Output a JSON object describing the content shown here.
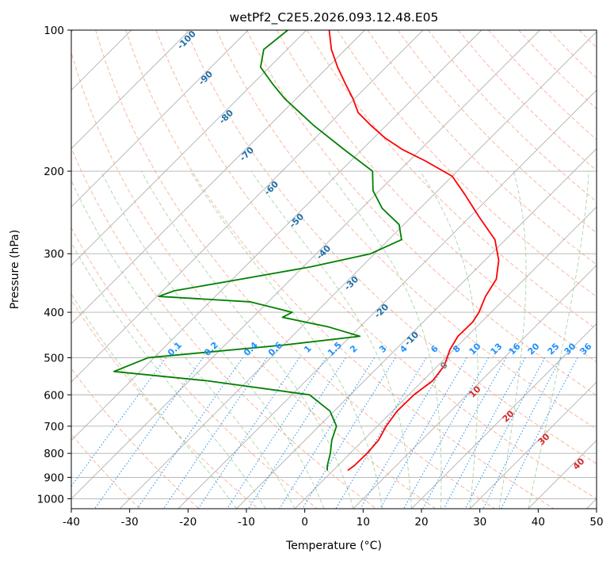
{
  "chart_data": {
    "type": "line",
    "title": "wetPf2_C2E5.2026.093.12.48.E05",
    "xlabel": "Temperature (°C)",
    "ylabel": "Pressure (hPa)",
    "xlim": [
      -40,
      50
    ],
    "ylim": [
      1050,
      100
    ],
    "y_scale": "log",
    "x_ticks": [
      -40,
      -30,
      -20,
      -10,
      0,
      10,
      20,
      30,
      40,
      50
    ],
    "y_ticks": [
      100,
      200,
      300,
      400,
      500,
      600,
      700,
      800,
      900,
      1000
    ],
    "grid": true,
    "series": [
      {
        "color": "#ff0000",
        "points": [
          [
            2.5,
            870
          ],
          [
            2.8,
            850
          ],
          [
            2.9,
            800
          ],
          [
            2.6,
            750
          ],
          [
            1.5,
            700
          ],
          [
            0.8,
            650
          ],
          [
            0.9,
            600
          ],
          [
            1.7,
            560
          ],
          [
            1.1,
            520
          ],
          [
            -0.7,
            480
          ],
          [
            -1.6,
            450
          ],
          [
            -1.5,
            420
          ],
          [
            -2.1,
            400
          ],
          [
            -3.7,
            370
          ],
          [
            -4.8,
            340
          ],
          [
            -7.6,
            310
          ],
          [
            -11.8,
            280
          ],
          [
            -18.5,
            250
          ],
          [
            -24.5,
            225
          ],
          [
            -30.0,
            205
          ],
          [
            -37.3,
            190
          ],
          [
            -43.0,
            180
          ],
          [
            -48.0,
            170
          ],
          [
            -52.5,
            160
          ],
          [
            -57.0,
            150
          ],
          [
            -60.3,
            140
          ],
          [
            -64.2,
            130
          ],
          [
            -68.3,
            120
          ],
          [
            -72.4,
            110
          ],
          [
            -76.1,
            100
          ]
        ]
      },
      {
        "color": "#008000",
        "points": [
          [
            -1.0,
            870
          ],
          [
            -1.8,
            850
          ],
          [
            -3.4,
            800
          ],
          [
            -5.4,
            750
          ],
          [
            -7.0,
            700
          ],
          [
            -10.7,
            650
          ],
          [
            -17.0,
            600
          ],
          [
            -37.0,
            560
          ],
          [
            -54.5,
            535
          ],
          [
            -51.0,
            500
          ],
          [
            -30.0,
            470
          ],
          [
            -18.4,
            450
          ],
          [
            -25.3,
            430
          ],
          [
            -34.9,
            410
          ],
          [
            -34.1,
            400
          ],
          [
            -43.1,
            380
          ],
          [
            -59.7,
            370
          ],
          [
            -58.0,
            360
          ],
          [
            -48.6,
            340
          ],
          [
            -38.7,
            320
          ],
          [
            -30.7,
            300
          ],
          [
            -27.8,
            280
          ],
          [
            -30.8,
            260
          ],
          [
            -36.5,
            240
          ],
          [
            -41.1,
            220
          ],
          [
            -44.5,
            200
          ],
          [
            -53.0,
            180
          ],
          [
            -62.3,
            160
          ],
          [
            -72.0,
            140
          ],
          [
            -76.7,
            130
          ],
          [
            -81.5,
            120
          ],
          [
            -84.0,
            110
          ],
          [
            -83.2,
            100
          ]
        ]
      }
    ],
    "dry_adiabat_labels": [
      "-100",
      "-90",
      "-80",
      "-70",
      "-60",
      "-50",
      "-40",
      "-30",
      "-20",
      "-10",
      "0",
      "10",
      "20",
      "30",
      "40"
    ],
    "mixing_ratio_labels": [
      "0.1",
      "0.2",
      "0.4",
      "0.6",
      "1",
      "1.5",
      "2",
      "3",
      "4",
      "6",
      "8",
      "10",
      "13",
      "16",
      "20",
      "25",
      "30",
      "36"
    ]
  },
  "colors": {
    "isotherm": "#b0b0b0",
    "dry_adiabat": "#f5a07d",
    "moist_adiabat": "#90c890",
    "mixing_ratio": "#3399ee",
    "dry_adiabat_label_cold": "#1f6fa8",
    "dry_adiabat_label_warm": "#d62728",
    "mixing_ratio_label": "#1e90ff",
    "zero_label": "#7f7f7f"
  }
}
